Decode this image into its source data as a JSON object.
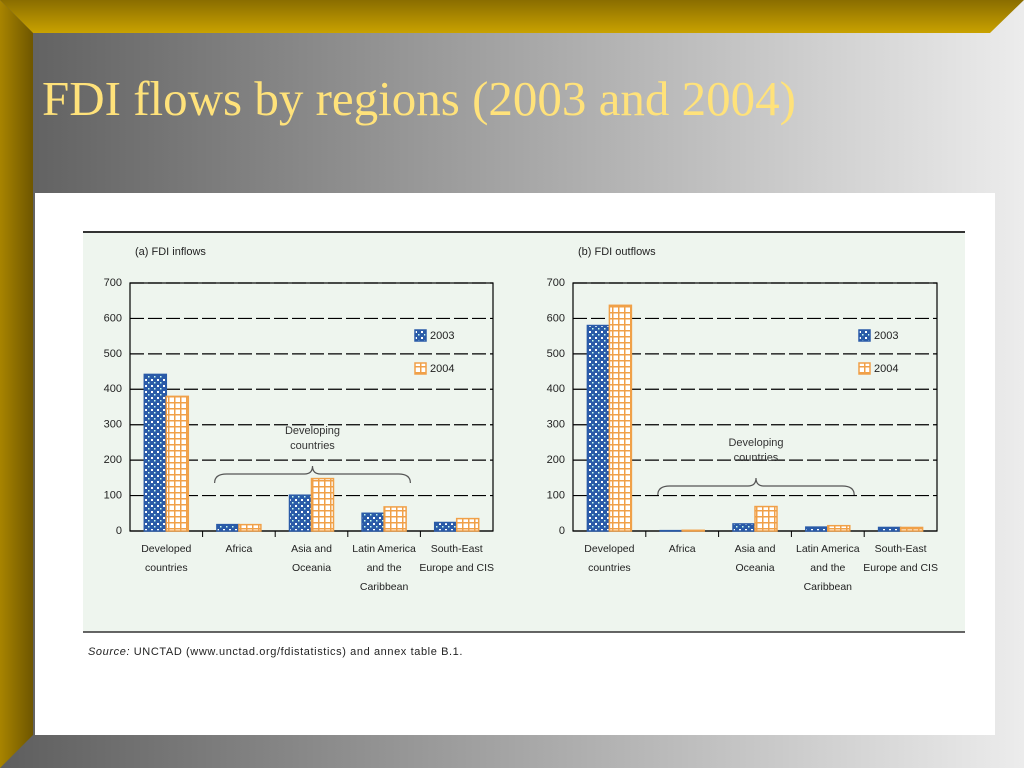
{
  "title": "FDI flows by regions (2003 and 2004)",
  "source": {
    "label": "Source:",
    "text": "UNCTAD (www.unctad.org/fdistatistics) and annex table B.1."
  },
  "chart_data": [
    {
      "type": "bar",
      "title": "(a) FDI inflows",
      "categories": [
        "Developed countries",
        "Africa",
        "Asia and Oceania",
        "Latin America and the Caribbean",
        "South-East Europe and CIS"
      ],
      "series": [
        {
          "name": "2003",
          "color": "#2a5ba8",
          "values": [
            442,
            18,
            101,
            50,
            24
          ]
        },
        {
          "name": "2004",
          "color": "#f0a048",
          "values": [
            380,
            18,
            148,
            68,
            35
          ]
        }
      ],
      "ylim": [
        0,
        700
      ],
      "yticks": [
        0,
        100,
        200,
        300,
        400,
        500,
        600,
        700
      ],
      "grid": true,
      "legend": "top-right",
      "annotation": "Developing countries"
    },
    {
      "type": "bar",
      "title": "(b) FDI outflows",
      "categories": [
        "Developed countries",
        "Africa",
        "Asia and Oceania",
        "Latin America and the Caribbean",
        "South-East Europe and CIS"
      ],
      "series": [
        {
          "name": "2003",
          "color": "#2a5ba8",
          "values": [
            580,
            1,
            20,
            11,
            10
          ]
        },
        {
          "name": "2004",
          "color": "#f0a048",
          "values": [
            637,
            2,
            69,
            15,
            10
          ]
        }
      ],
      "ylim": [
        0,
        700
      ],
      "yticks": [
        0,
        100,
        200,
        300,
        400,
        500,
        600,
        700
      ],
      "grid": true,
      "legend": "top-right",
      "annotation": "Developing countries"
    }
  ]
}
